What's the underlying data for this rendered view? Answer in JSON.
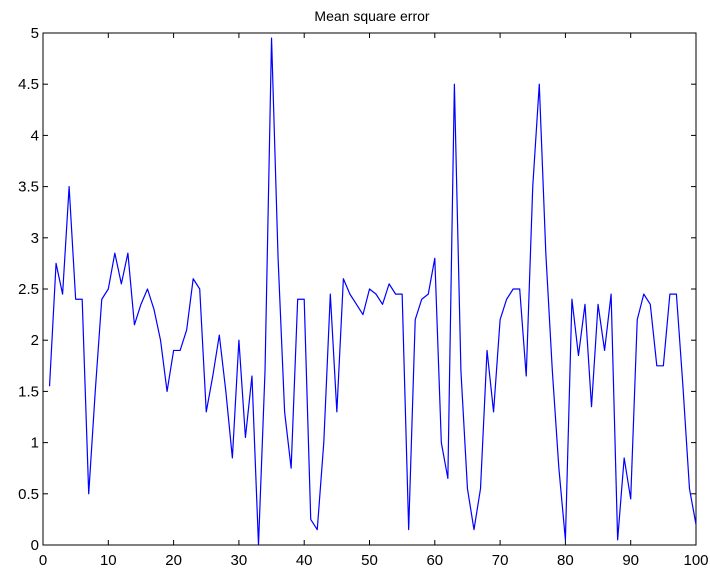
{
  "chart_data": {
    "type": "line",
    "title": "Mean square error",
    "xlabel": "",
    "ylabel": "",
    "xlim": [
      0,
      100
    ],
    "ylim": [
      0,
      5
    ],
    "xticks": [
      0,
      10,
      20,
      30,
      40,
      50,
      60,
      70,
      80,
      90,
      100
    ],
    "yticks": [
      0,
      0.5,
      1,
      1.5,
      2,
      2.5,
      3,
      3.5,
      4,
      4.5,
      5
    ],
    "line_color": "#0000ff",
    "grid": false,
    "series": [
      {
        "x": [
          1,
          2,
          3,
          4,
          5,
          6,
          7,
          8,
          9,
          10,
          11,
          12,
          13,
          14,
          15,
          16,
          17,
          18,
          19,
          20,
          21,
          22,
          23,
          24,
          25,
          26,
          27,
          28,
          29,
          30,
          31,
          32,
          33,
          34,
          35,
          36,
          37,
          38,
          39,
          40,
          41,
          42,
          43,
          44,
          45,
          46,
          47,
          48,
          49,
          50,
          51,
          52,
          53,
          54,
          55,
          56,
          57,
          58,
          59,
          60,
          61,
          62,
          63,
          64,
          65,
          66,
          67,
          68,
          69,
          70,
          71,
          72,
          73,
          74,
          75,
          76,
          77,
          78,
          79,
          80,
          81,
          82,
          83,
          84,
          85,
          86,
          87,
          88,
          89,
          90,
          91,
          92,
          93,
          94,
          95,
          96,
          97,
          98,
          99,
          100
        ],
        "values": [
          1.55,
          2.75,
          2.45,
          3.5,
          2.4,
          2.4,
          0.5,
          1.5,
          2.4,
          2.5,
          2.85,
          2.55,
          2.85,
          2.15,
          2.35,
          2.5,
          2.3,
          2.0,
          1.5,
          1.9,
          1.9,
          2.1,
          2.6,
          2.5,
          1.3,
          1.65,
          2.05,
          1.5,
          0.85,
          2.0,
          1.05,
          1.65,
          0.0,
          1.7,
          4.95,
          2.8,
          1.3,
          0.75,
          2.4,
          2.4,
          0.25,
          0.15,
          1.0,
          2.45,
          1.3,
          2.6,
          2.45,
          2.35,
          2.25,
          2.5,
          2.45,
          2.35,
          2.55,
          2.45,
          2.45,
          0.15,
          2.2,
          2.4,
          2.45,
          2.8,
          1.0,
          0.65,
          4.5,
          1.7,
          0.55,
          0.15,
          0.55,
          1.9,
          1.3,
          2.2,
          2.4,
          2.5,
          2.5,
          1.65,
          3.5,
          4.5,
          2.85,
          1.7,
          0.75,
          0.05,
          2.4,
          1.85,
          2.35,
          1.35,
          2.35,
          1.9,
          2.45,
          0.05,
          0.85,
          0.45,
          2.2,
          2.45,
          2.35,
          1.75,
          1.75,
          2.45,
          2.45,
          1.55,
          0.55,
          0.2
        ]
      }
    ]
  }
}
